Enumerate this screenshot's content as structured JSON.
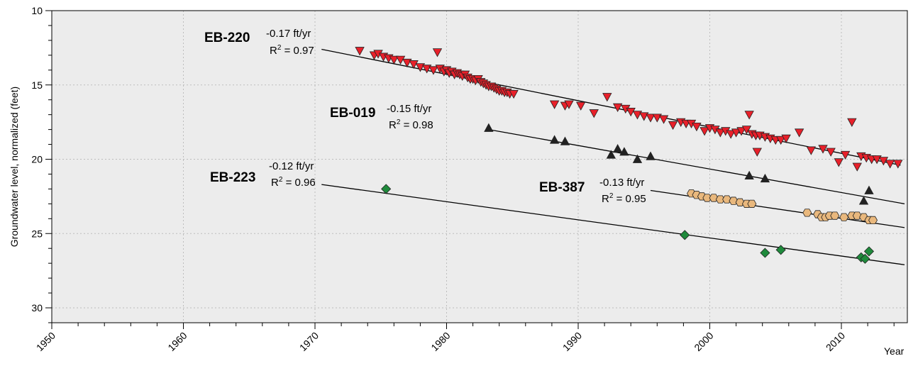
{
  "chart_data": {
    "type": "scatter",
    "title": "",
    "xlabel": "Year",
    "ylabel": "Groundwater level, normalized (feet)",
    "xlim": [
      1950,
      2015
    ],
    "ylim": [
      10,
      31
    ],
    "y_inverted": true,
    "grid": true,
    "x_ticks": [
      1950,
      1960,
      1970,
      1980,
      1990,
      2000,
      2010
    ],
    "x_tick_labels": [
      "1950",
      "1960",
      "1970",
      "1980",
      "1990",
      "2000",
      "2010"
    ],
    "y_ticks": [
      10,
      15,
      20,
      25,
      30
    ],
    "y_tick_labels": [
      "10",
      "15",
      "20",
      "25",
      "30"
    ],
    "colors": {
      "plot_background": "#ececec",
      "grid": "#bdbdbd"
    },
    "series": [
      {
        "name": "EB-220",
        "rate": "-0.17 ft/yr",
        "r2_label": "R",
        "r2_value": " = 0.97",
        "marker": "triangle-down",
        "color": "#e8202a",
        "trend": {
          "x": [
            1970.5,
            2014.5
          ],
          "y": [
            12.6,
            20.4
          ]
        },
        "x": [
          1973.4,
          1974.5,
          1974.8,
          1975.2,
          1975.6,
          1976,
          1976.5,
          1977,
          1977.5,
          1978,
          1978.5,
          1979,
          1979.3,
          1979.5,
          1979.8,
          1980,
          1980.2,
          1980.4,
          1980.6,
          1980.8,
          1981,
          1981.2,
          1981.4,
          1981.6,
          1981.8,
          1982,
          1982.2,
          1982.4,
          1982.6,
          1982.8,
          1983,
          1983.2,
          1983.4,
          1983.6,
          1983.8,
          1984,
          1984.2,
          1984.4,
          1984.6,
          1984.8,
          1985.1,
          1988.2,
          1989,
          1989.3,
          1990.2,
          1991.2,
          1992.2,
          1993,
          1993.6,
          1994,
          1994.5,
          1995,
          1995.5,
          1996,
          1996.5,
          1997.2,
          1997.8,
          1998.2,
          1998.6,
          1999,
          1999.6,
          2000,
          2000.4,
          2000.8,
          2001.2,
          2001.6,
          2002,
          2002.4,
          2002.8,
          2003,
          2003.2,
          2003.5,
          2003.6,
          2003.8,
          2004.2,
          2004.6,
          2005,
          2005.4,
          2005.8,
          2006.8,
          2007.7,
          2008.6,
          2009.2,
          2009.8,
          2010.3,
          2010.8,
          2011.2,
          2011.5,
          2011.9,
          2012.3,
          2012.7,
          2013.2,
          2013.7,
          2014.3
        ],
        "y": [
          12.7,
          13.0,
          12.9,
          13.1,
          13.2,
          13.3,
          13.3,
          13.5,
          13.6,
          13.8,
          13.9,
          14.0,
          12.8,
          13.9,
          14.1,
          14.0,
          14.2,
          14.1,
          14.3,
          14.2,
          14.3,
          14.4,
          14.3,
          14.5,
          14.6,
          14.6,
          14.7,
          14.6,
          14.8,
          14.9,
          15.0,
          15.1,
          15.1,
          15.2,
          15.3,
          15.4,
          15.4,
          15.5,
          15.5,
          15.6,
          15.6,
          16.3,
          16.4,
          16.3,
          16.4,
          16.9,
          15.8,
          16.5,
          16.6,
          16.8,
          17.0,
          17.1,
          17.2,
          17.2,
          17.3,
          17.7,
          17.5,
          17.6,
          17.6,
          17.8,
          18.1,
          17.9,
          18.0,
          18.2,
          18.1,
          18.3,
          18.2,
          18.1,
          18.0,
          17.0,
          18.3,
          18.4,
          19.5,
          18.4,
          18.5,
          18.6,
          18.7,
          18.7,
          18.6,
          18.2,
          19.4,
          19.3,
          19.5,
          20.2,
          19.7,
          17.5,
          20.5,
          19.8,
          19.9,
          20.0,
          20.0,
          20.1,
          20.3,
          20.3
        ]
      },
      {
        "name": "EB-019",
        "rate": "-0.15 ft/yr",
        "r2_label": "R",
        "r2_value": " = 0.98",
        "marker": "triangle-up",
        "color": "#222222",
        "trend": {
          "x": [
            1983.2,
            2014.8
          ],
          "y": [
            18.0,
            23.0
          ]
        },
        "x": [
          1983.2,
          1988.2,
          1989,
          1992.5,
          1993,
          1993.5,
          1994.5,
          1995.5,
          2003,
          2004.2,
          2011.7,
          2012.1
        ],
        "y": [
          17.9,
          18.7,
          18.8,
          19.7,
          19.3,
          19.5,
          20.0,
          19.8,
          21.1,
          21.3,
          22.8,
          22.1
        ]
      },
      {
        "name": "EB-223",
        "rate": "-0.12 ft/yr",
        "r2_label": "R",
        "r2_value": " = 0.96",
        "marker": "diamond",
        "color": "#1f8a3c",
        "trend": {
          "x": [
            1970.5,
            2014.8
          ],
          "y": [
            21.7,
            27.1
          ]
        },
        "x": [
          1975.4,
          1998.1,
          2004.2,
          2005.4,
          2011.5,
          2011.8,
          2012.1
        ],
        "y": [
          22.0,
          25.1,
          26.3,
          26.1,
          26.6,
          26.7,
          26.2
        ]
      },
      {
        "name": "EB-387",
        "rate": "-0.13 ft/yr",
        "r2_label": "R",
        "r2_value": " = 0.95",
        "marker": "hexagon",
        "color": "#e9b87d",
        "trend": {
          "x": [
            1995.5,
            2014.8
          ],
          "y": [
            22.1,
            24.6
          ]
        },
        "x": [
          1998.6,
          1999,
          1999.4,
          1999.8,
          2000.3,
          2000.8,
          2001.3,
          2001.8,
          2002.3,
          2002.8,
          2003.2,
          2007.4,
          2008.2,
          2008.5,
          2008.8,
          2009.1,
          2009.5,
          2010.2,
          2010.8,
          2011.2,
          2011.7,
          2012.1,
          2012.4
        ],
        "y": [
          22.3,
          22.4,
          22.5,
          22.6,
          22.6,
          22.7,
          22.7,
          22.8,
          22.9,
          23.0,
          23.0,
          23.6,
          23.7,
          23.9,
          23.9,
          23.8,
          23.8,
          23.9,
          23.8,
          23.8,
          23.9,
          24.1,
          24.1
        ]
      }
    ]
  }
}
